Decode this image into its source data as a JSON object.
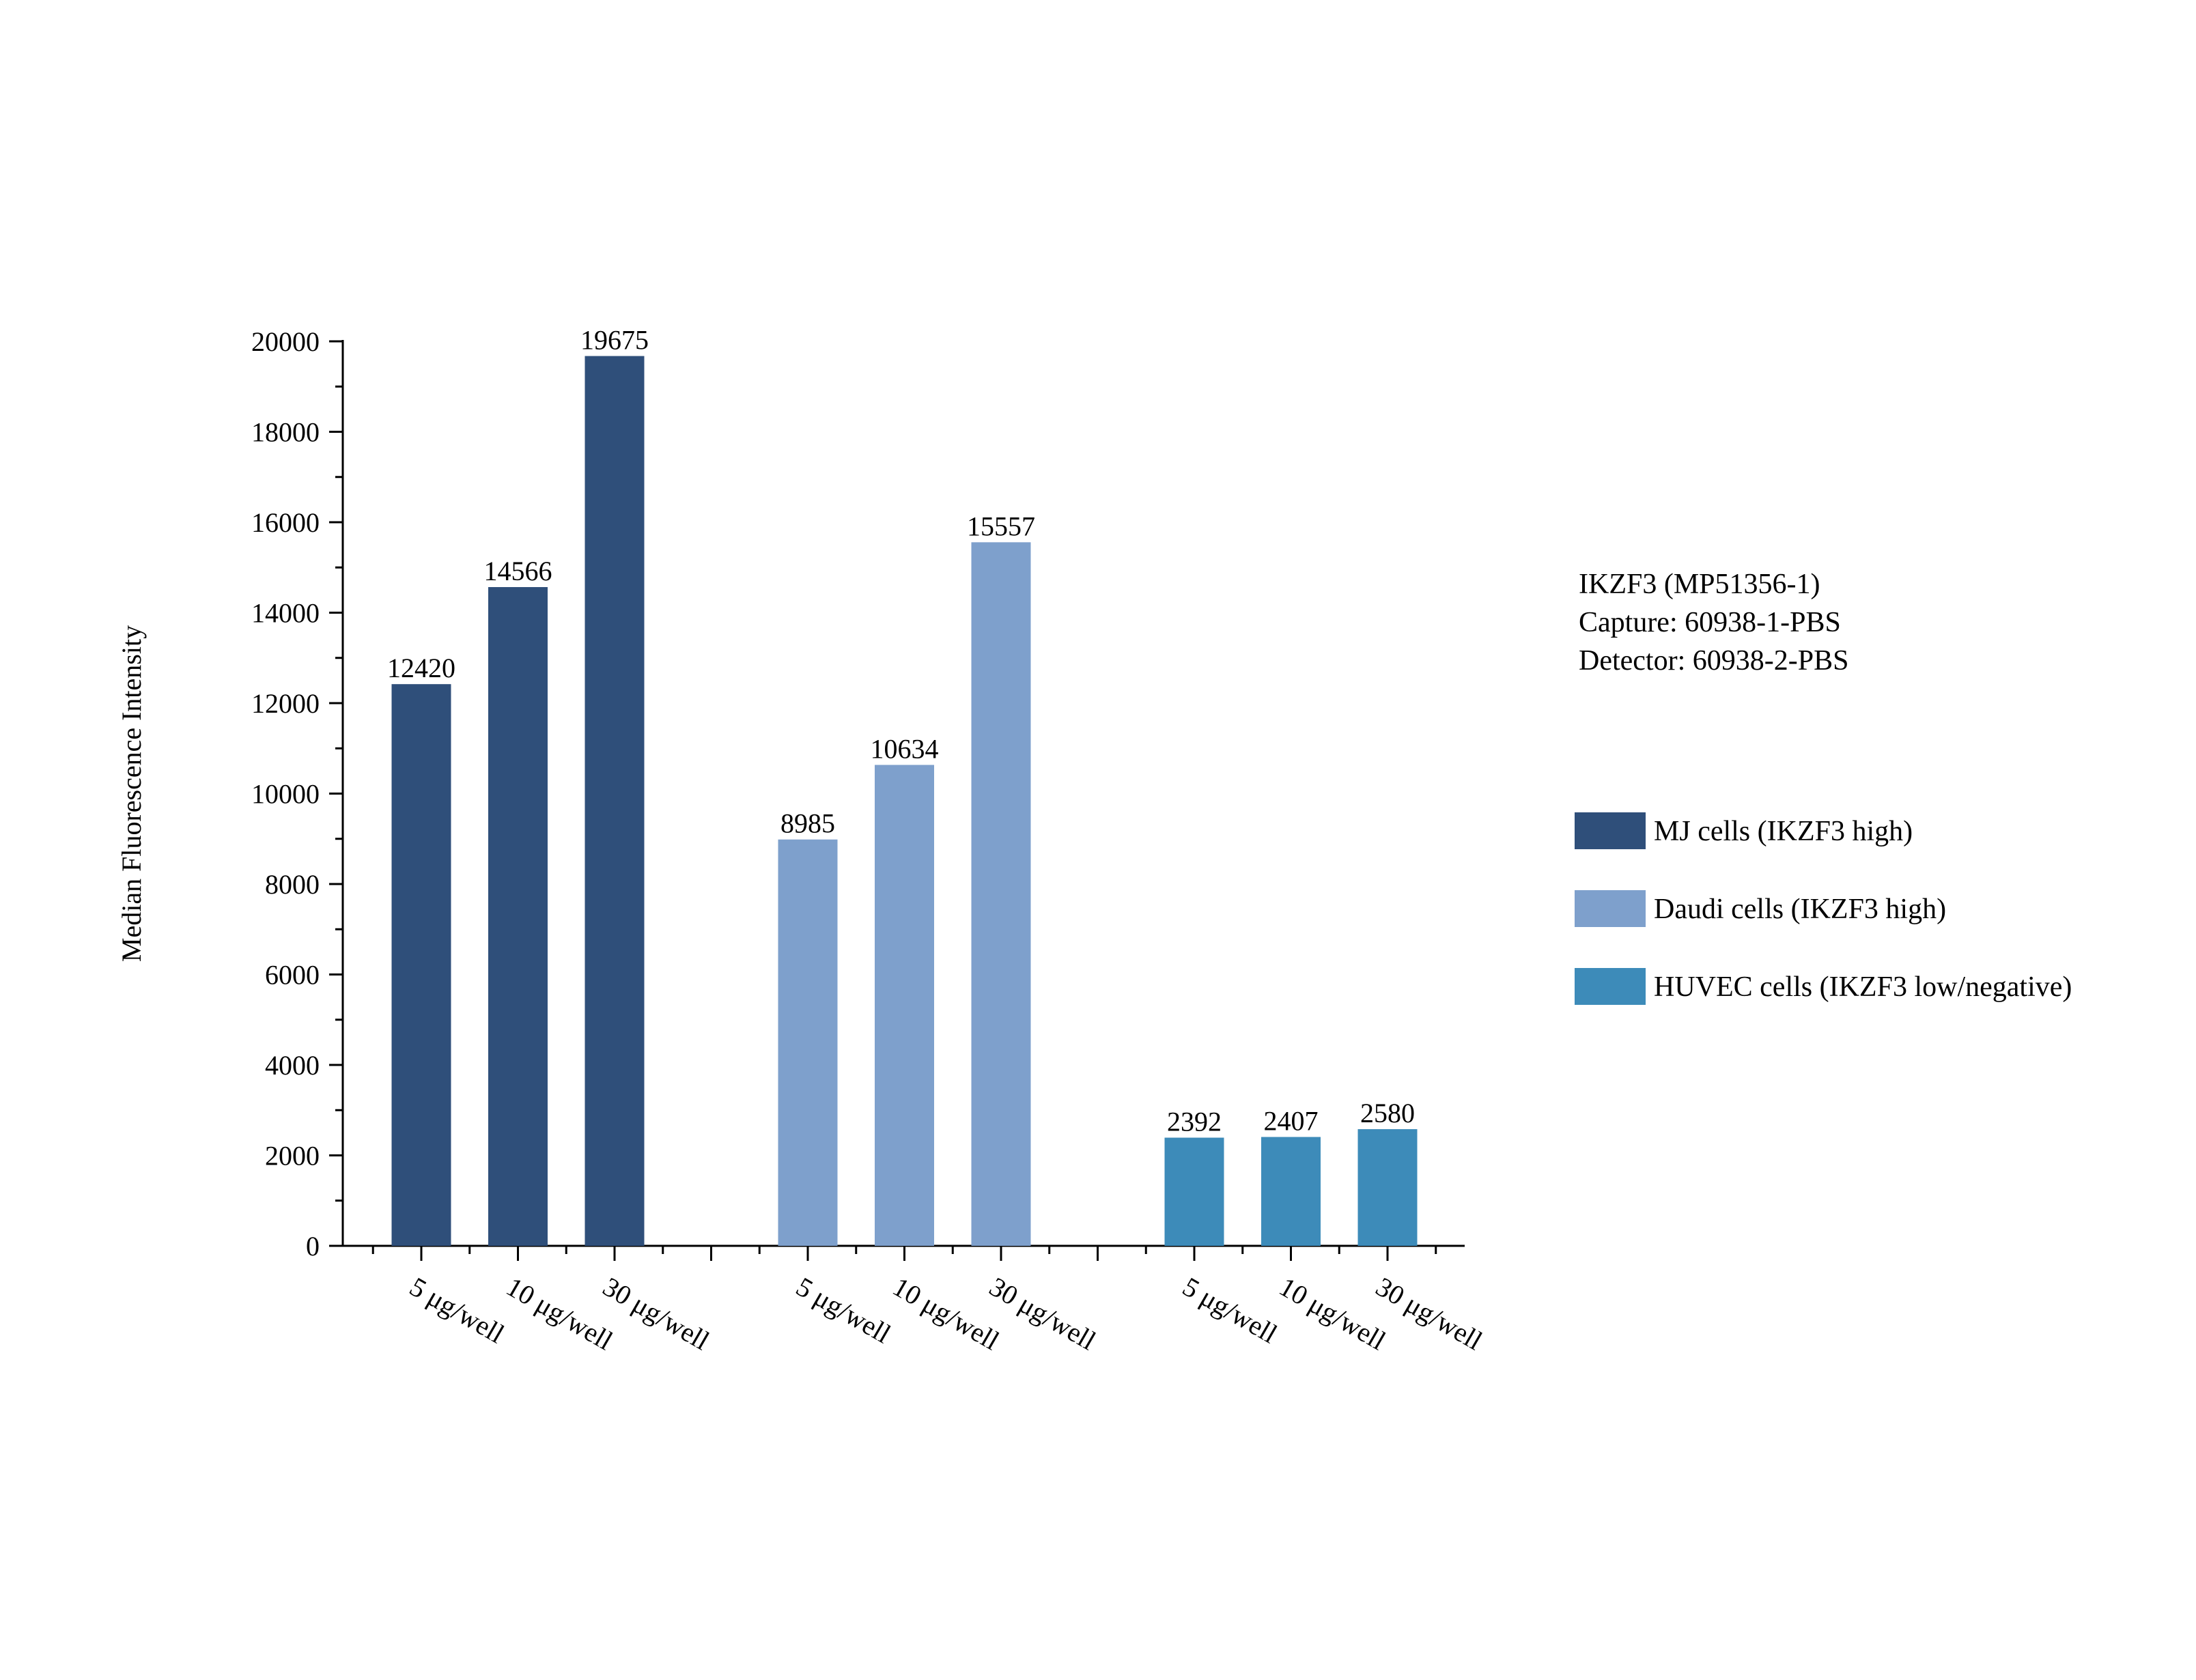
{
  "chart_data": {
    "type": "bar",
    "ylabel": "Median Fluorescence Intensity",
    "ylim": [
      0,
      20000
    ],
    "yticks": [
      0,
      2000,
      4000,
      6000,
      8000,
      10000,
      12000,
      14000,
      16000,
      18000,
      20000
    ],
    "categories": [
      "5 μg/well",
      "10 μg/well",
      "30 μg/well"
    ],
    "series": [
      {
        "name": "MJ cells (IKZF3 high)",
        "color": "#2f4f7a",
        "values": [
          12420,
          14566,
          19675
        ]
      },
      {
        "name": "Daudi cells (IKZF3 high)",
        "color": "#7ea0cc",
        "values": [
          8985,
          10634,
          15557
        ]
      },
      {
        "name": "HUVEC cells (IKZF3 low/negative)",
        "color": "#3d8bb9",
        "values": [
          2392,
          2407,
          2580
        ]
      }
    ],
    "annotations": [
      "IKZF3 (MP51356-1)",
      "Capture: 60938-1-PBS",
      "Detector: 60938-2-PBS"
    ],
    "grid": false,
    "legend_position": "right"
  }
}
